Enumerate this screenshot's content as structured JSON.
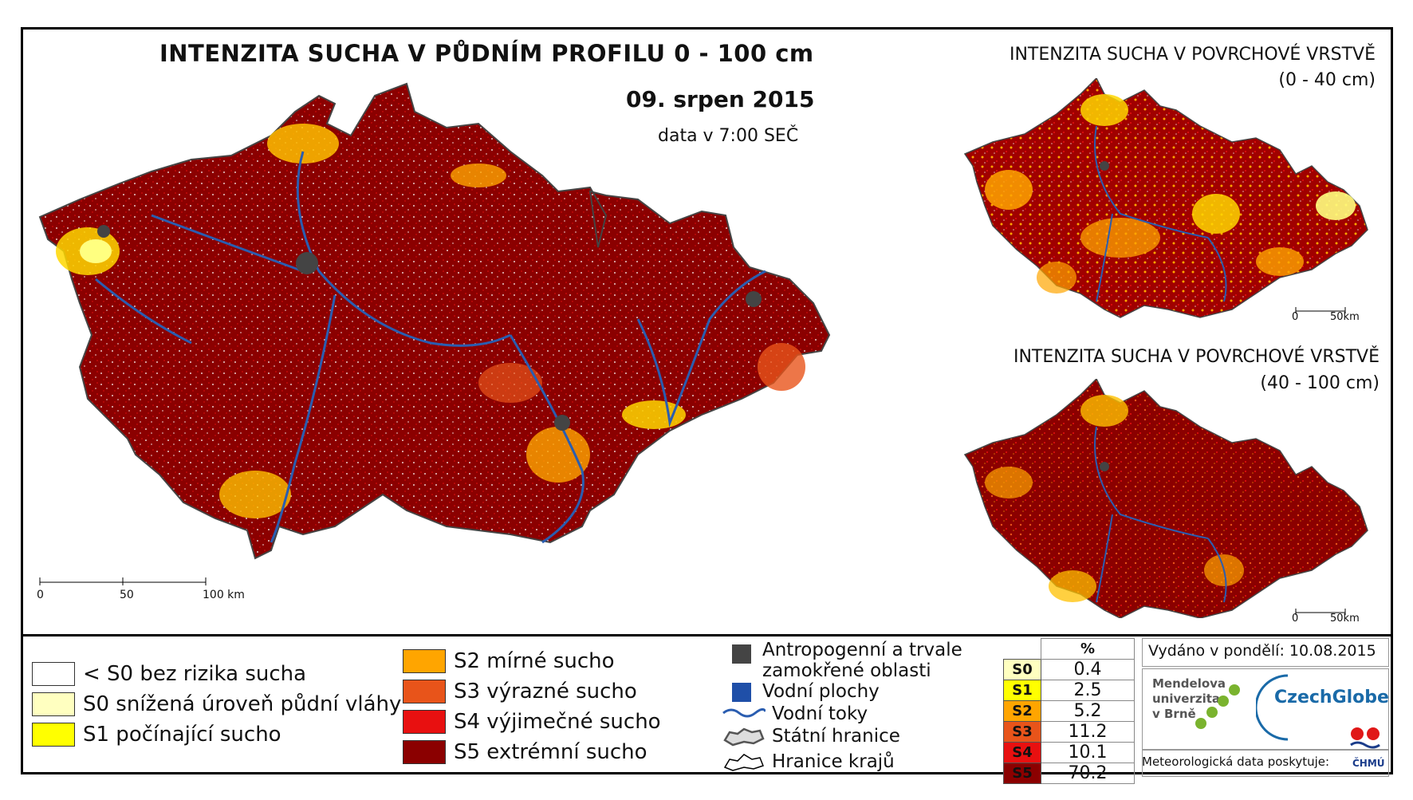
{
  "main_title": "INTENZITA SUCHA V PŮDNÍM PROFILU 0 - 100 cm",
  "date": "09. srpen 2015",
  "data_time": "data v 7:00 SEČ",
  "inset_top": {
    "title": "INTENZITA SUCHA V POVRCHOVÉ VRSTVĚ",
    "depth": "(0 - 40 cm)"
  },
  "inset_bottom": {
    "title": "INTENZITA SUCHA V POVRCHOVÉ VRSTVĚ",
    "depth": "(40 - 100 cm)"
  },
  "main_scale": {
    "t0": "0",
    "t1": "50",
    "t2": "100 km"
  },
  "inset_scale": {
    "t0": "0",
    "t1": "50km"
  },
  "legend": [
    {
      "label": "< S0 bez rizika sucha",
      "color": "#ffffff"
    },
    {
      "label": "S0 snížená úroveň půdní vláhy",
      "color": "#ffffc0"
    },
    {
      "label": "S1 počínající sucho",
      "color": "#ffff00"
    },
    {
      "label": "S2 mírné sucho",
      "color": "#ffa500"
    },
    {
      "label": "S3 výrazné sucho",
      "color": "#e8541a"
    },
    {
      "label": "S4 výjimečné sucho",
      "color": "#e81010"
    },
    {
      "label": "S5 extrémní sucho",
      "color": "#8b0000"
    }
  ],
  "symbols": {
    "anthro": "Antropogenní a trvale zamokřené oblasti",
    "water_bodies": "Vodní plochy",
    "rivers": "Vodní toky",
    "state_border": "Státní hranice",
    "region_border": "Hranice krajů"
  },
  "stats": {
    "header": "%",
    "rows": [
      {
        "label": "S0",
        "value": "0.4",
        "color": "#ffffc0"
      },
      {
        "label": "S1",
        "value": "2.5",
        "color": "#ffff00"
      },
      {
        "label": "S2",
        "value": "5.2",
        "color": "#ffa500"
      },
      {
        "label": "S3",
        "value": "11.2",
        "color": "#e8541a"
      },
      {
        "label": "S4",
        "value": "10.1",
        "color": "#e81010"
      },
      {
        "label": "S5",
        "value": "70.2",
        "color": "#8b0000"
      }
    ]
  },
  "issued": "Vydáno v pondělí: 10.08.2015",
  "logos": {
    "mendel_line1": "Mendelova",
    "mendel_line2": "univerzita",
    "mendel_line3": "v Brně",
    "czechglobe": "CzechGlobe",
    "chmu": "ČHMÚ"
  },
  "meteo_source": "Meteorologická data poskytuje:"
}
